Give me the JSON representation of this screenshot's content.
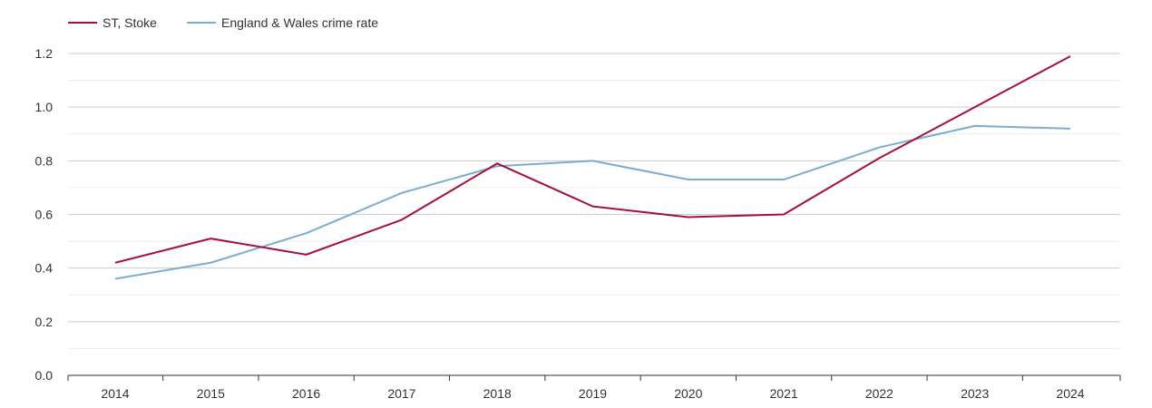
{
  "chart_data": {
    "type": "line",
    "title": "",
    "xlabel": "",
    "ylabel": "",
    "x": [
      "2014",
      "2015",
      "2016",
      "2017",
      "2018",
      "2019",
      "2020",
      "2021",
      "2022",
      "2023",
      "2024"
    ],
    "ylim": [
      0,
      1.2
    ],
    "yticks": [
      "0.0",
      "0.2",
      "0.4",
      "0.6",
      "0.8",
      "1.0",
      "1.2"
    ],
    "grid": true,
    "legend_position": "top-left",
    "series": [
      {
        "name": "ST, Stoke",
        "color": "#a50f3c",
        "values": [
          0.42,
          0.51,
          0.45,
          0.58,
          0.79,
          0.63,
          0.59,
          0.6,
          0.81,
          1.0,
          1.19
        ]
      },
      {
        "name": "England & Wales crime rate",
        "color": "#7aadcf",
        "values": [
          0.36,
          0.42,
          0.53,
          0.68,
          0.78,
          0.8,
          0.73,
          0.73,
          0.85,
          0.93,
          0.92
        ]
      }
    ]
  }
}
